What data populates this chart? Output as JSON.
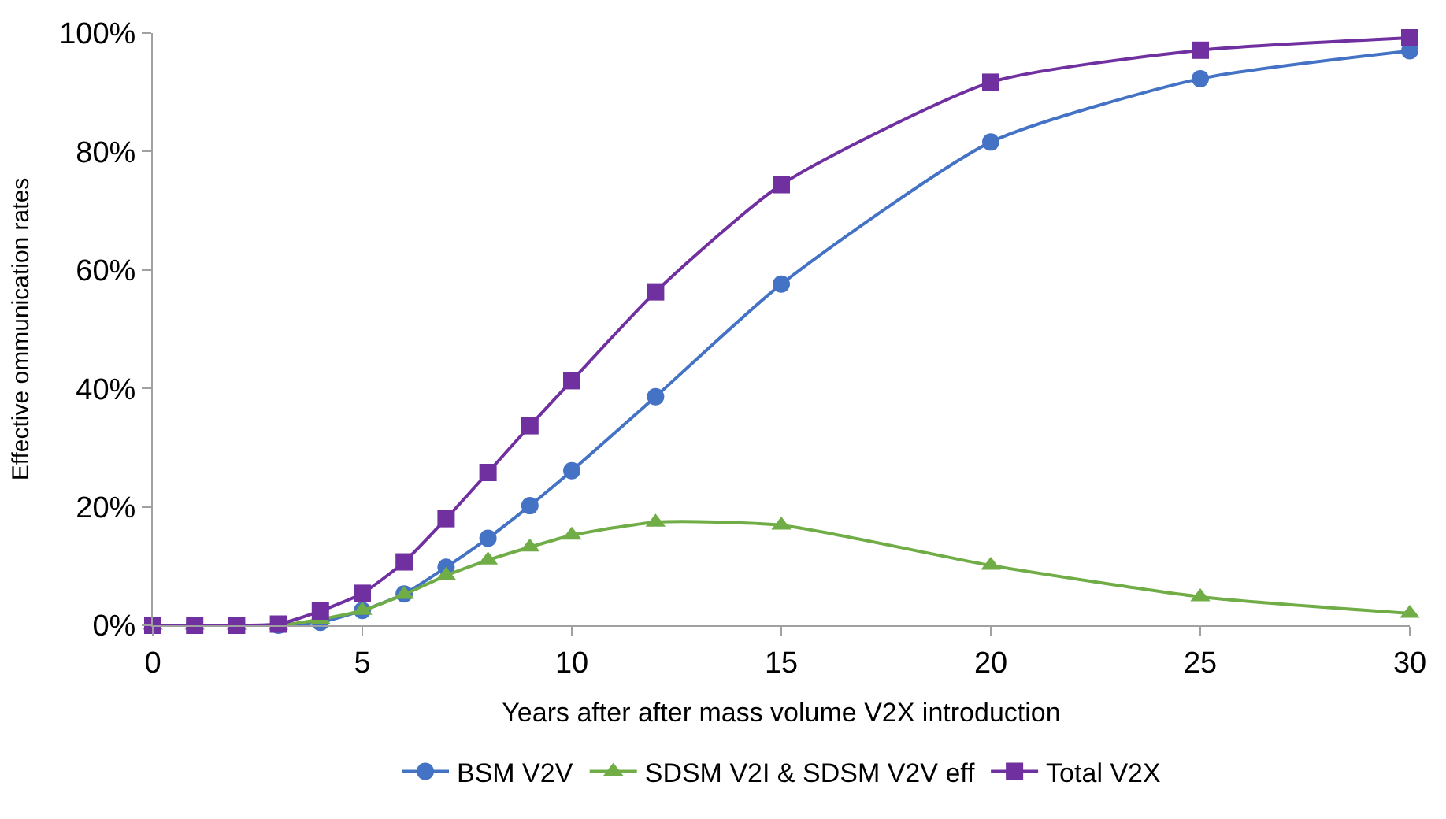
{
  "chart_data": {
    "type": "line",
    "xlabel": "Years after after mass volume V2X introduction",
    "ylabel": "Effective ommunication rates",
    "x": [
      0,
      1,
      2,
      3,
      4,
      5,
      6,
      7,
      8,
      9,
      10,
      12,
      15,
      20,
      25,
      30
    ],
    "series": [
      {
        "name": "BSM V2V",
        "color": "#4472c4",
        "marker": "circle",
        "values": [
          0,
          0,
          0,
          0,
          0.5,
          2.5,
          5.3,
          9.8,
          14.7,
          20.2,
          26.1,
          38.6,
          57.6,
          81.6,
          92.3,
          97
        ]
      },
      {
        "name": "SDSM V2I & SDSM V2V eff",
        "color": "#70ad47",
        "marker": "triangle",
        "values": [
          0,
          0,
          0,
          0,
          1,
          2.5,
          5.2,
          8.4,
          11,
          13.2,
          15.2,
          17.4,
          16.9,
          10.1,
          4.8,
          2
        ]
      },
      {
        "name": "Total V2X",
        "color": "#7030a0",
        "marker": "square",
        "values": [
          0,
          0,
          0,
          0.2,
          2.4,
          5.4,
          10.7,
          18,
          25.8,
          33.7,
          41.3,
          56.3,
          74.4,
          91.7,
          97.1,
          99.2
        ]
      }
    ],
    "xlim": [
      0,
      30
    ],
    "xticks": [
      0,
      5,
      10,
      15,
      20,
      25,
      30
    ],
    "ylim": [
      0,
      100
    ],
    "yticks": [
      {
        "value": 0,
        "label": "0%"
      },
      {
        "value": 20,
        "label": "20%"
      },
      {
        "value": 40,
        "label": "40%"
      },
      {
        "value": 60,
        "label": "60%"
      },
      {
        "value": 80,
        "label": "80%"
      },
      {
        "value": 100,
        "label": "100%"
      }
    ],
    "legend": "bottom",
    "line_style": "solid"
  }
}
